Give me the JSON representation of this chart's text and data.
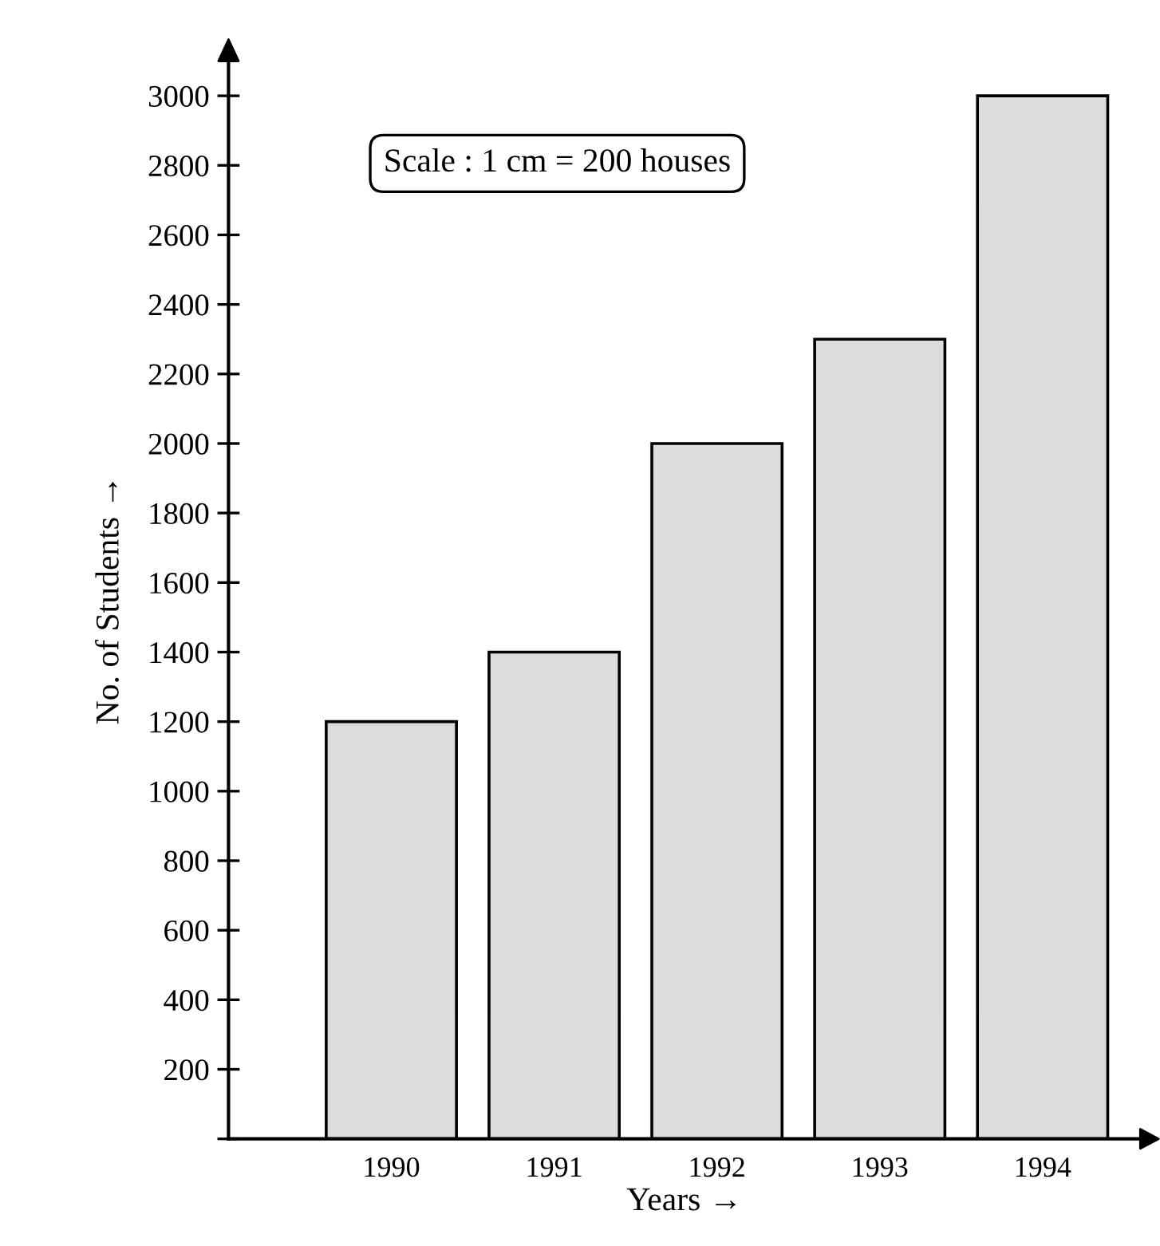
{
  "chart_data": {
    "type": "bar",
    "xlabel": "Years →",
    "ylabel": "No. of Students →",
    "categories": [
      "1990",
      "1991",
      "1992",
      "1993",
      "1994"
    ],
    "values": [
      1200,
      1400,
      2000,
      2300,
      3000
    ],
    "color": "#dcdcdc",
    "ylim": [
      0,
      3100
    ],
    "yticks": [
      {
        "value": 0,
        "label": null
      },
      200,
      400,
      600,
      800,
      1000,
      1200,
      1400,
      1600,
      1800,
      2000,
      2200,
      2400,
      2600,
      2800,
      3000
    ],
    "grid": false,
    "legend": false,
    "annotations": [
      "Scale : 1 cm = 200 houses"
    ]
  }
}
